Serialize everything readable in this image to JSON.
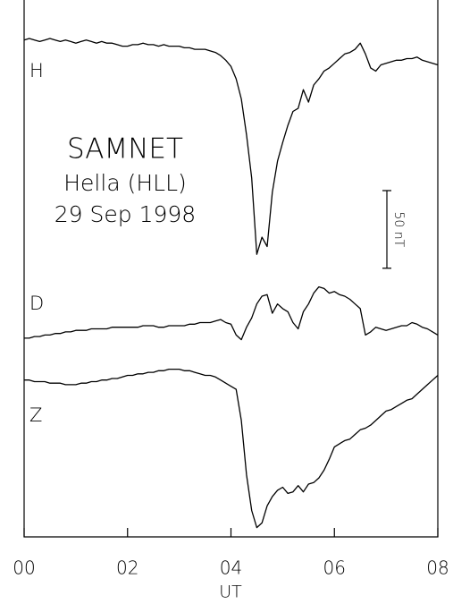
{
  "chart_data": {
    "type": "line",
    "title": "SAMNET",
    "subtitle": "Hella (HLL)",
    "date": "29 Sep 1998",
    "xlabel": "UT",
    "scale_bar": {
      "value": 50,
      "label": "50 nT"
    },
    "x": [
      0,
      0.1,
      0.2,
      0.3,
      0.4,
      0.5,
      0.6,
      0.7,
      0.8,
      0.9,
      1,
      1.1,
      1.2,
      1.3,
      1.4,
      1.5,
      1.6,
      1.7,
      1.8,
      1.9,
      2,
      2.1,
      2.2,
      2.3,
      2.4,
      2.5,
      2.6,
      2.7,
      2.8,
      2.9,
      3,
      3.1,
      3.2,
      3.3,
      3.4,
      3.5,
      3.6,
      3.7,
      3.8,
      3.9,
      4,
      4.1,
      4.2,
      4.3,
      4.4,
      4.5,
      4.6,
      4.7,
      4.8,
      4.9,
      5,
      5.1,
      5.2,
      5.3,
      5.4,
      5.5,
      5.6,
      5.7,
      5.8,
      5.9,
      6,
      6.1,
      6.2,
      6.3,
      6.4,
      6.5,
      6.6,
      6.7,
      6.8,
      6.9,
      7,
      7.1,
      7.2,
      7.3,
      7.4,
      7.5,
      7.6,
      7.7,
      7.8,
      7.9,
      8
    ],
    "series": [
      {
        "name": "H",
        "color": "#000000",
        "values": [
          320,
          321,
          320,
          319,
          320,
          321,
          320,
          319,
          320,
          319,
          318,
          319,
          320,
          319,
          318,
          319,
          318,
          318,
          317,
          316,
          316,
          317,
          317,
          318,
          317,
          317,
          316,
          317,
          316,
          316,
          316,
          315,
          315,
          314,
          314,
          314,
          313,
          312,
          310,
          307,
          303,
          295,
          282,
          259,
          231,
          182,
          193,
          187,
          222,
          242,
          254,
          265,
          274,
          276,
          288,
          280,
          291,
          295,
          300,
          302,
          305,
          308,
          311,
          312,
          314,
          318,
          311,
          302,
          300,
          304,
          305,
          306,
          307,
          307,
          308,
          308,
          309,
          307,
          306,
          305,
          304
        ]
      },
      {
        "name": "D",
        "color": "#000000",
        "values": [
          128,
          128,
          129,
          129,
          130,
          130,
          131,
          131,
          132,
          132,
          133,
          133,
          133,
          134,
          134,
          134,
          134,
          135,
          135,
          135,
          135,
          135,
          135,
          136,
          136,
          136,
          135,
          135,
          136,
          136,
          136,
          136,
          137,
          137,
          138,
          138,
          138,
          139,
          140,
          138,
          137,
          130,
          127,
          135,
          141,
          150,
          155,
          156,
          144,
          150,
          147,
          145,
          138,
          134,
          145,
          150,
          157,
          161,
          160,
          157,
          158,
          156,
          155,
          153,
          150,
          147,
          130,
          132,
          135,
          134,
          133,
          134,
          135,
          136,
          136,
          138,
          137,
          135,
          134,
          132,
          130
        ]
      },
      {
        "name": "Z",
        "color": "#000000",
        "values": [
          101,
          101,
          100,
          100,
          100,
          99,
          99,
          99,
          98,
          98,
          98,
          99,
          99,
          100,
          100,
          101,
          101,
          102,
          102,
          103,
          104,
          104,
          105,
          105,
          106,
          106,
          107,
          107,
          108,
          108,
          108,
          107,
          107,
          106,
          105,
          104,
          104,
          103,
          101,
          99,
          97,
          95,
          75,
          40,
          17,
          6,
          9,
          20,
          26,
          30,
          32,
          28,
          29,
          33,
          29,
          34,
          35,
          38,
          43,
          50,
          58,
          60,
          62,
          63,
          66,
          69,
          70,
          72,
          75,
          78,
          81,
          82,
          84,
          86,
          88,
          89,
          92,
          95,
          98,
          101,
          104
        ]
      }
    ],
    "xlim": [
      0,
      8
    ],
    "xticks": [
      {
        "value": 0,
        "label": "00"
      },
      {
        "value": 2,
        "label": "02"
      },
      {
        "value": 4,
        "label": "04"
      },
      {
        "value": 6,
        "label": "06"
      },
      {
        "value": 8,
        "label": "08"
      }
    ],
    "ylim": [
      0,
      340
    ]
  }
}
